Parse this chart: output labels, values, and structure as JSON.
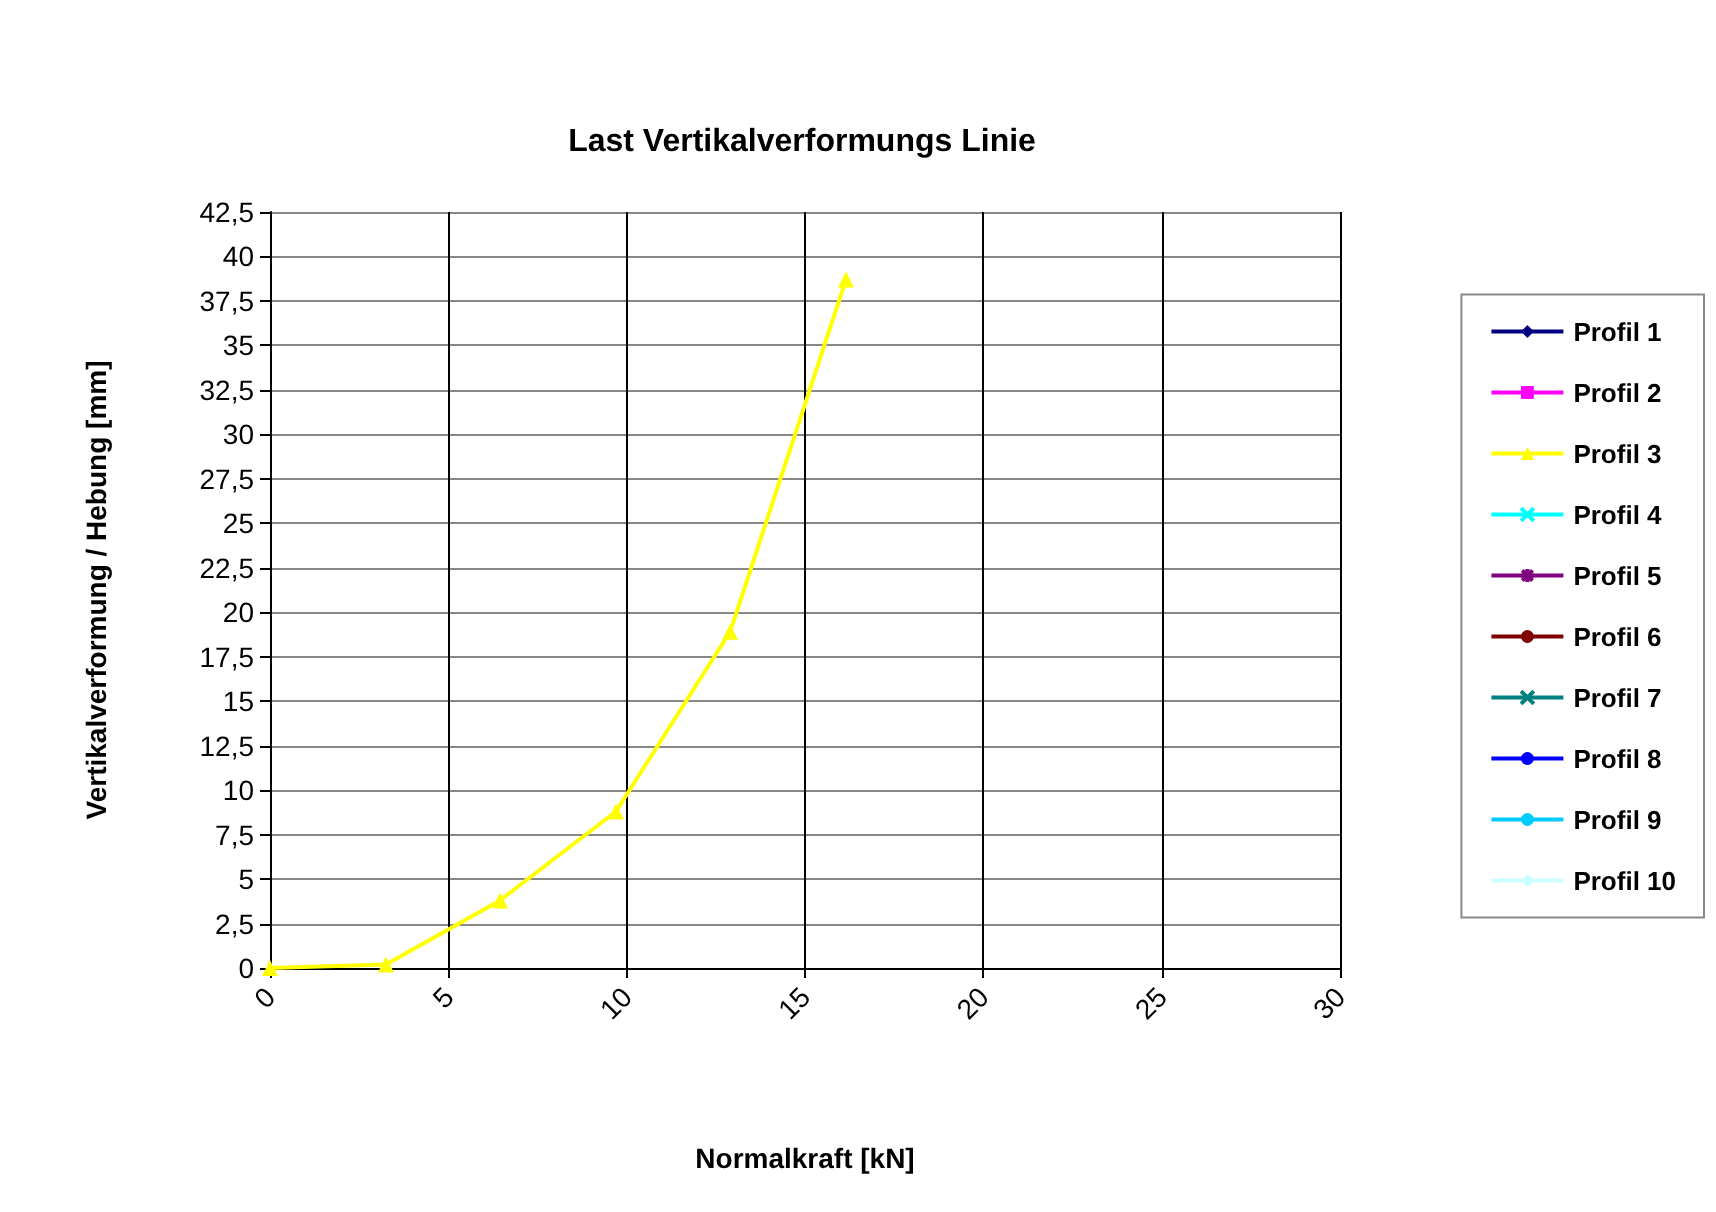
{
  "chart_data": {
    "type": "line",
    "title": "Last Vertikalverformungs Linie",
    "xlabel": "Normalkraft [kN]",
    "ylabel": "Vertikalverformung / Hebung [mm]",
    "xlim": [
      0,
      30
    ],
    "xticks": [
      0,
      5,
      10,
      15,
      20,
      25,
      30
    ],
    "ylim": [
      0,
      42.5
    ],
    "yticks": [
      0,
      {
        "value": 2.5,
        "label": "2,5"
      },
      5,
      {
        "value": 7.5,
        "label": "7,5"
      },
      10,
      {
        "value": 12.5,
        "label": "12,5"
      },
      15,
      {
        "value": 17.5,
        "label": "17,5"
      },
      20,
      {
        "value": 22.5,
        "label": "22,5"
      },
      25,
      {
        "value": 27.5,
        "label": "27,5"
      },
      30,
      {
        "value": 32.5,
        "label": "32,5"
      },
      35,
      {
        "value": 37.5,
        "label": "37,5"
      },
      40,
      {
        "value": 42.5,
        "label": "42,5"
      }
    ],
    "grid": true,
    "legend": "right",
    "series": [
      {
        "name": "Profil 1",
        "color": "#000080",
        "marker": "diamond"
      },
      {
        "name": "Profil 2",
        "color": "#ff00ff",
        "marker": "square"
      },
      {
        "name": "Profil 3",
        "color": "#ffff00",
        "marker": "triangle",
        "x": [
          0,
          3.25,
          6.45,
          9.7,
          12.9,
          16.15
        ],
        "values": [
          0,
          0.2,
          3.8,
          8.8,
          18.9,
          38.7
        ]
      },
      {
        "name": "Profil 4",
        "color": "#00ffff",
        "marker": "cross"
      },
      {
        "name": "Profil 5",
        "color": "#800080",
        "marker": "star"
      },
      {
        "name": "Profil 6",
        "color": "#800000",
        "marker": "circle"
      },
      {
        "name": "Profil 7",
        "color": "#008080",
        "marker": "cross"
      },
      {
        "name": "Profil 8",
        "color": "#0000ff",
        "marker": "none"
      },
      {
        "name": "Profil 9",
        "color": "#00ccff",
        "marker": "none"
      },
      {
        "name": "Profil 10",
        "color": "#ccffff",
        "marker": "diamond"
      }
    ]
  }
}
